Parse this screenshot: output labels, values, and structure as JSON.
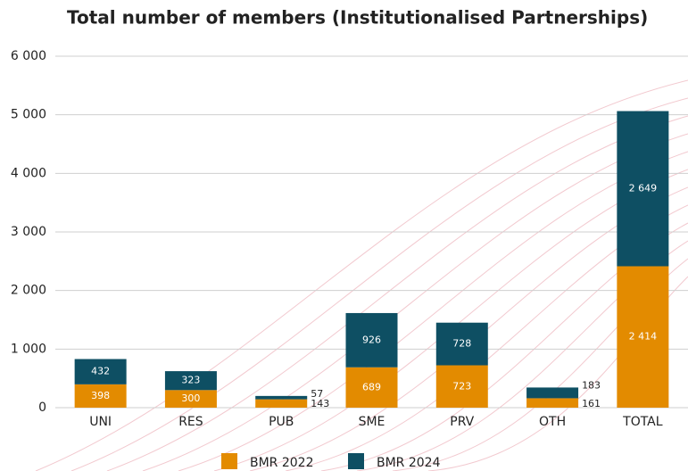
{
  "chart_data": {
    "type": "stacked-bar",
    "title": "Total number of members (Institutionalised Partnerships)",
    "categories": [
      "UNI",
      "RES",
      "PUB",
      "SME",
      "PRV",
      "OTH",
      "TOTAL"
    ],
    "series": [
      {
        "name": "BMR 2022",
        "color": "#e38b00",
        "values": [
          398,
          300,
          143,
          689,
          723,
          161,
          2414
        ],
        "value_labels": [
          "398",
          "300",
          "143",
          "689",
          "723",
          "161",
          "2 414"
        ]
      },
      {
        "name": "BMR 2024",
        "color": "#0e4f63",
        "values": [
          432,
          323,
          57,
          926,
          728,
          183,
          2649
        ],
        "value_labels": [
          "432",
          "323",
          "57",
          "926",
          "728",
          "183",
          "2 649"
        ]
      }
    ],
    "ylim": [
      0,
      6000
    ],
    "yticks": [
      0,
      {
        "value": 1000,
        "label": "1 000"
      },
      {
        "value": 2000,
        "label": "2 000"
      },
      {
        "value": 3000,
        "label": "3 000"
      },
      {
        "value": 4000,
        "label": "4 000"
      },
      {
        "value": 5000,
        "label": "5 000"
      },
      {
        "value": 6000,
        "label": "6 000"
      }
    ],
    "grid": true
  }
}
